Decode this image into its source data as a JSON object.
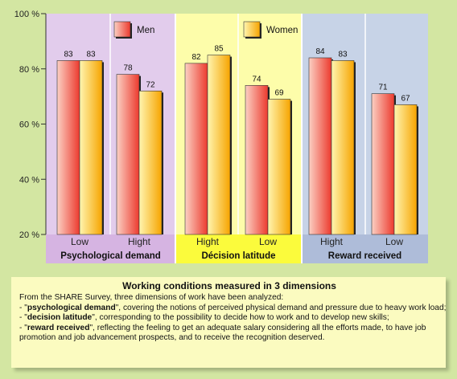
{
  "chart_data": {
    "type": "bar",
    "ylim": [
      20,
      100
    ],
    "yticks": [
      "20 %",
      "40 %",
      "60 %",
      "80 %",
      "100 %"
    ],
    "ytick_values": [
      20,
      40,
      60,
      80,
      100
    ],
    "groups": [
      {
        "label": "Psychological demand",
        "panel_color": "#e2ccec",
        "label_bg": "#d6b4e2",
        "categories": [
          "Low",
          "Hight"
        ]
      },
      {
        "label": "Décision latitude",
        "panel_color": "#fdfdaa",
        "label_bg": "#fbfb3c",
        "categories": [
          "Hight",
          "Low"
        ]
      },
      {
        "label": "Reward received",
        "panel_color": "#c7d3e7",
        "label_bg": "#aebcd9",
        "categories": [
          "Hight",
          "Low"
        ]
      }
    ],
    "categories": [
      "Low",
      "Hight",
      "Hight",
      "Low",
      "Hight",
      "Low"
    ],
    "series": [
      {
        "name": "Men",
        "values": [
          83,
          78,
          82,
          74,
          84,
          71
        ]
      },
      {
        "name": "Women",
        "values": [
          83,
          72,
          85,
          69,
          83,
          67
        ]
      }
    ],
    "legend": "top"
  },
  "colors": {
    "men_light": "#fbd0c3",
    "men_dark": "#ec3a2e",
    "women_light": "#fff5b0",
    "women_dark": "#f6a400"
  },
  "note": {
    "title": "Working conditions measured in 3 dimensions",
    "intro": "From the SHARE Survey, three dimensions of work have been analyzed:",
    "items": [
      {
        "prefix": "- \"",
        "term": "psychological demand",
        "text": "\", covering the notions of perceived physical demand and pressure due to heavy work load;"
      },
      {
        "prefix": "- \"",
        "term": "decision latitude",
        "text": "\", corresponding to the possibility to decide how to work and to develop new skills;"
      },
      {
        "prefix": "- \"",
        "term": "reward received",
        "text": "\", reflecting the feeling to get an adequate salary considering all the efforts made, to have job promotion and job advancement prospects, and to receive the recognition deserved."
      }
    ]
  }
}
